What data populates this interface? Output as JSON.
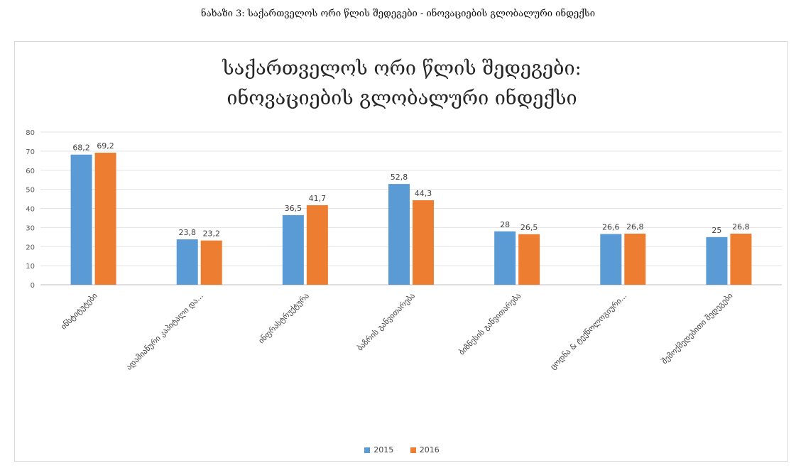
{
  "caption": "ნახაზი 3: საქართველოს ორი წლის შედეგები - ინოვაციების გლობალური ინდექსი",
  "chart_data": {
    "type": "bar",
    "title_lines": [
      "საქართველოს ორი წლის შედეგები:",
      "ინოვაციების გლობალური ინდექსი"
    ],
    "categories": [
      "ინსტიტუტები",
      "ადამიანური კაპიტალი და...",
      "ინფრასტრუქტურა",
      "ბაზრის განვითარება",
      "ბიზნესის განვითარება",
      "ცოდნა & ტექნოლოგიური...",
      "შემოქმედებითი შედეგები"
    ],
    "series": [
      {
        "name": "2015",
        "color": "#5b9bd5",
        "values": [
          68.2,
          23.8,
          36.5,
          52.8,
          28,
          26.6,
          25
        ]
      },
      {
        "name": "2016",
        "color": "#ed7d31",
        "values": [
          69.2,
          23.2,
          41.7,
          44.3,
          26.5,
          26.8,
          26.8
        ]
      }
    ],
    "value_labels": [
      [
        "68,2",
        "23,8",
        "36,5",
        "52,8",
        "28",
        "26,6",
        "25"
      ],
      [
        "69,2",
        "23,2",
        "41,7",
        "44,3",
        "26,5",
        "26,8",
        "26,8"
      ]
    ],
    "yticks": [
      "0",
      "10",
      "20",
      "30",
      "40",
      "50",
      "60",
      "70",
      "80"
    ],
    "ylim": [
      0,
      80
    ],
    "grid": true,
    "legend_position": "bottom"
  }
}
